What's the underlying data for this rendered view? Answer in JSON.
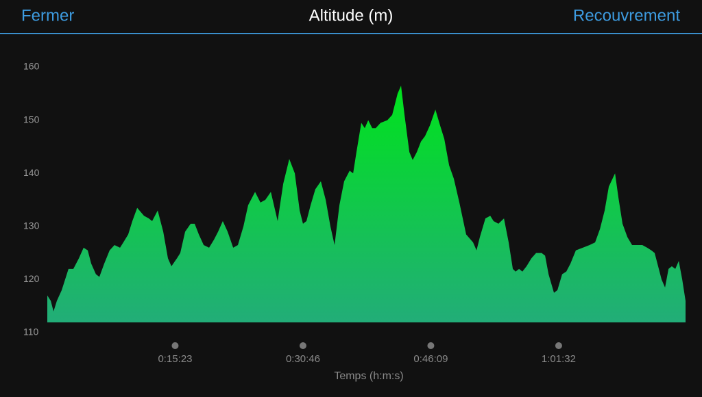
{
  "header": {
    "left_button": "Fermer",
    "title": "Altitude (m)",
    "right_button": "Recouvrement"
  },
  "chart_data": {
    "type": "area",
    "x_label": "Temps (h:m:s)",
    "x": [
      0,
      25,
      45,
      69,
      104,
      153,
      188,
      228,
      262,
      292,
      317,
      351,
      376,
      411,
      450,
      485,
      525,
      549,
      584,
      614,
      649,
      698,
      733,
      757,
      797,
      837,
      871,
      896,
      936,
      960,
      995,
      1035,
      1064,
      1094,
      1129,
      1168,
      1203,
      1233,
      1267,
      1302,
      1342,
      1376,
      1416,
      1450,
      1500,
      1539,
      1574,
      1614,
      1663,
      1703,
      1747,
      1787,
      1822,
      1846,
      1871,
      1901,
      1935,
      1975,
      2010,
      2044,
      2074,
      2109,
      2143,
      2183,
      2208,
      2232,
      2267,
      2292,
      2317,
      2346,
      2371,
      2406,
      2455,
      2490,
      2529,
      2554,
      2579,
      2614,
      2638,
      2668,
      2698,
      2727,
      2762,
      2802,
      2836,
      2866,
      2901,
      2935,
      2975,
      3024,
      3074,
      3099,
      3123,
      3163,
      3198,
      3222,
      3257,
      3297,
      3331,
      3361,
      3381,
      3406,
      3430,
      3460,
      3495,
      3529,
      3569,
      3594,
      3619,
      3658,
      3683,
      3717,
      3747,
      3777,
      3816,
      3866,
      3915,
      3955,
      3990,
      4024,
      4054,
      4099,
      4123,
      4153,
      4188,
      4222,
      4262,
      4296,
      4331,
      4361,
      4385,
      4410,
      4435,
      4460,
      4485,
      4509,
      4534,
      4559,
      4584,
      4608
    ],
    "values": [
      117,
      116,
      114,
      116,
      118,
      122,
      122,
      124,
      126,
      125.5,
      123,
      121,
      120.5,
      123,
      125.5,
      126.5,
      126,
      127,
      128.5,
      131,
      133.5,
      132,
      131.5,
      131,
      133,
      129,
      124,
      122.5,
      124,
      125,
      129,
      130.5,
      130.5,
      128.5,
      126.5,
      126,
      127.5,
      129,
      131,
      129,
      126,
      126.5,
      130,
      134,
      136.5,
      134.5,
      135,
      136.5,
      131,
      138,
      142.7,
      140,
      133,
      130.5,
      131,
      134,
      137,
      138.5,
      135,
      130,
      126.5,
      134,
      138.5,
      140.5,
      140,
      144,
      149.5,
      148.5,
      150,
      148.5,
      148.5,
      149.5,
      150,
      151,
      155,
      156.5,
      151,
      144,
      142.5,
      144,
      146,
      147,
      149,
      152,
      149,
      146.5,
      141.5,
      139,
      134.5,
      128.5,
      127,
      125.5,
      128,
      131.5,
      132,
      131,
      130.5,
      131.5,
      127,
      122,
      121.5,
      122,
      121.5,
      122.5,
      124,
      125,
      125,
      124.5,
      121,
      117.5,
      118,
      121,
      121.5,
      123,
      125.5,
      126,
      126.5,
      127,
      129.5,
      133,
      137.5,
      140,
      135.5,
      130.5,
      128,
      126.5,
      126.5,
      126.5,
      126,
      125.5,
      125,
      122.5,
      120,
      118.5,
      122,
      122.5,
      122,
      123.5,
      120,
      116
    ],
    "xlim": [
      0,
      4608
    ],
    "xticks": [
      {
        "value": 923,
        "label": "0:15:23"
      },
      {
        "value": 1846,
        "label": "0:30:46"
      },
      {
        "value": 2769,
        "label": "0:46:09"
      },
      {
        "value": 3692,
        "label": "1:01:32"
      }
    ],
    "ylim": [
      110,
      160
    ],
    "yticks": [
      110,
      120,
      130,
      140,
      150,
      160
    ],
    "colors": [
      "#00e31c",
      "#22ad78"
    ]
  }
}
